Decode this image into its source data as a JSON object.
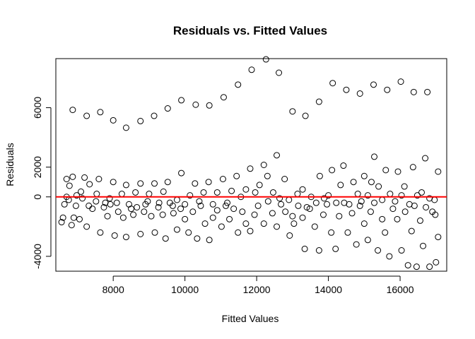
{
  "chart_data": {
    "type": "scatter",
    "title": "Residuals vs. Fitted Values",
    "xlabel": "Fitted Values",
    "ylabel": "Residuals",
    "xlim": [
      6400,
      17300
    ],
    "ylim": [
      -5000,
      9300
    ],
    "x_ticks": [
      8000,
      10000,
      12000,
      14000,
      16000
    ],
    "y_ticks": [
      -4000,
      0,
      2000,
      6000
    ],
    "x_tick_labels": [
      "8000",
      "10000",
      "12000",
      "14000",
      "16000"
    ],
    "y_tick_labels": [
      "-4000",
      "0",
      "2000",
      "6000"
    ],
    "grid": false,
    "legend": "none",
    "reference_line": {
      "y": 0,
      "color": "#ff0000"
    },
    "point_color": "#000000",
    "series": [
      {
        "name": "",
        "points": [
          [
            6870,
            5850
          ],
          [
            7260,
            5450
          ],
          [
            7640,
            5700
          ],
          [
            8000,
            5150
          ],
          [
            8360,
            4650
          ],
          [
            8760,
            5100
          ],
          [
            9140,
            5450
          ],
          [
            9520,
            5950
          ],
          [
            9900,
            6500
          ],
          [
            10300,
            6200
          ],
          [
            10680,
            6150
          ],
          [
            11080,
            6700
          ],
          [
            11480,
            7550
          ],
          [
            11860,
            8550
          ],
          [
            12260,
            9250
          ],
          [
            12620,
            8350
          ],
          [
            13000,
            5750
          ],
          [
            13360,
            5450
          ],
          [
            13740,
            6400
          ],
          [
            14120,
            7650
          ],
          [
            14500,
            7200
          ],
          [
            14880,
            6950
          ],
          [
            15260,
            7550
          ],
          [
            15640,
            7200
          ],
          [
            16020,
            7750
          ],
          [
            16380,
            7050
          ],
          [
            16760,
            7050
          ],
          [
            6700,
            1200
          ],
          [
            6780,
            750
          ],
          [
            6870,
            1350
          ],
          [
            6980,
            100
          ],
          [
            7100,
            350
          ],
          [
            7200,
            1300
          ],
          [
            7340,
            850
          ],
          [
            7540,
            200
          ],
          [
            7600,
            1200
          ],
          [
            7780,
            -400
          ],
          [
            7900,
            -100
          ],
          [
            8000,
            1000
          ],
          [
            8100,
            -400
          ],
          [
            8240,
            200
          ],
          [
            8360,
            800
          ],
          [
            8500,
            -800
          ],
          [
            8620,
            300
          ],
          [
            8760,
            900
          ],
          [
            8900,
            -500
          ],
          [
            9000,
            200
          ],
          [
            9150,
            900
          ],
          [
            9280,
            -400
          ],
          [
            9400,
            350
          ],
          [
            9520,
            1000
          ],
          [
            9660,
            -600
          ],
          [
            9780,
            -200
          ],
          [
            9900,
            1600
          ],
          [
            10000,
            -500
          ],
          [
            10140,
            100
          ],
          [
            10280,
            900
          ],
          [
            10400,
            -300
          ],
          [
            10520,
            300
          ],
          [
            10660,
            1000
          ],
          [
            10780,
            -500
          ],
          [
            10900,
            300
          ],
          [
            11060,
            1200
          ],
          [
            11180,
            -400
          ],
          [
            11300,
            400
          ],
          [
            11440,
            1400
          ],
          [
            11560,
            0
          ],
          [
            11700,
            500
          ],
          [
            11820,
            1900
          ],
          [
            11960,
            300
          ],
          [
            12080,
            800
          ],
          [
            12200,
            2150
          ],
          [
            12300,
            1400
          ],
          [
            12460,
            300
          ],
          [
            12560,
            2800
          ],
          [
            12640,
            -100
          ],
          [
            12780,
            1200
          ],
          [
            12900,
            -200
          ],
          [
            13000,
            -1300
          ],
          [
            13140,
            200
          ],
          [
            13280,
            500
          ],
          [
            13400,
            -700
          ],
          [
            13520,
            0
          ],
          [
            13660,
            -400
          ],
          [
            13760,
            1400
          ],
          [
            13880,
            -100
          ],
          [
            14000,
            100
          ],
          [
            14100,
            1800
          ],
          [
            14220,
            -400
          ],
          [
            14340,
            800
          ],
          [
            14420,
            2100
          ],
          [
            14580,
            -500
          ],
          [
            14700,
            1000
          ],
          [
            14820,
            200
          ],
          [
            14920,
            -300
          ],
          [
            15000,
            1400
          ],
          [
            15100,
            100
          ],
          [
            15200,
            1000
          ],
          [
            15280,
            2700
          ],
          [
            15400,
            700
          ],
          [
            15500,
            -200
          ],
          [
            15600,
            1800
          ],
          [
            15720,
            200
          ],
          [
            15860,
            -300
          ],
          [
            15940,
            1700
          ],
          [
            16040,
            100
          ],
          [
            16120,
            700
          ],
          [
            16260,
            -500
          ],
          [
            16360,
            2000
          ],
          [
            16480,
            100
          ],
          [
            16600,
            300
          ],
          [
            16700,
            2600
          ],
          [
            16820,
            -100
          ],
          [
            16960,
            -200
          ],
          [
            17060,
            1700
          ],
          [
            6560,
            -1700
          ],
          [
            6600,
            -1400
          ],
          [
            6640,
            -500
          ],
          [
            6700,
            0
          ],
          [
            6760,
            -200
          ],
          [
            6840,
            -1900
          ],
          [
            6900,
            -1400
          ],
          [
            6960,
            -600
          ],
          [
            7060,
            -1500
          ],
          [
            7140,
            -100
          ],
          [
            7260,
            -2000
          ],
          [
            7320,
            -600
          ],
          [
            7420,
            -800
          ],
          [
            7520,
            -300
          ],
          [
            7640,
            -2400
          ],
          [
            7740,
            -700
          ],
          [
            7840,
            -1300
          ],
          [
            7920,
            -500
          ],
          [
            8040,
            -2600
          ],
          [
            8140,
            -1000
          ],
          [
            8280,
            -1400
          ],
          [
            8360,
            -2700
          ],
          [
            8440,
            -500
          ],
          [
            8560,
            -1200
          ],
          [
            8660,
            -700
          ],
          [
            8760,
            -2500
          ],
          [
            8860,
            -1000
          ],
          [
            8960,
            -300
          ],
          [
            9060,
            -1300
          ],
          [
            9160,
            -2400
          ],
          [
            9260,
            -700
          ],
          [
            9380,
            -1200
          ],
          [
            9460,
            -2800
          ],
          [
            9580,
            -400
          ],
          [
            9680,
            -1100
          ],
          [
            9780,
            -2200
          ],
          [
            9880,
            -800
          ],
          [
            10000,
            -1500
          ],
          [
            10100,
            -2400
          ],
          [
            10220,
            -1000
          ],
          [
            10340,
            -2800
          ],
          [
            10440,
            -600
          ],
          [
            10560,
            -1800
          ],
          [
            10680,
            -2900
          ],
          [
            10780,
            -1400
          ],
          [
            10900,
            -900
          ],
          [
            11020,
            -2000
          ],
          [
            11140,
            -600
          ],
          [
            11240,
            -1500
          ],
          [
            11360,
            -800
          ],
          [
            11480,
            -2400
          ],
          [
            11600,
            -1000
          ],
          [
            11700,
            -1800
          ],
          [
            11820,
            -2300
          ],
          [
            11940,
            -1200
          ],
          [
            12040,
            -600
          ],
          [
            12200,
            -1800
          ],
          [
            12320,
            -300
          ],
          [
            12440,
            -1100
          ],
          [
            12560,
            -2000
          ],
          [
            12680,
            -500
          ],
          [
            12800,
            -1000
          ],
          [
            12920,
            -2600
          ],
          [
            13040,
            -1800
          ],
          [
            13160,
            -600
          ],
          [
            13280,
            -1400
          ],
          [
            13340,
            -3500
          ],
          [
            13480,
            -800
          ],
          [
            13620,
            -2000
          ],
          [
            13740,
            -3600
          ],
          [
            13860,
            -1200
          ],
          [
            13960,
            -500
          ],
          [
            14080,
            -2400
          ],
          [
            14200,
            -3500
          ],
          [
            14300,
            -1300
          ],
          [
            14440,
            -400
          ],
          [
            14540,
            -2400
          ],
          [
            14660,
            -1100
          ],
          [
            14780,
            -3200
          ],
          [
            14880,
            -600
          ],
          [
            15000,
            -1800
          ],
          [
            15100,
            -2900
          ],
          [
            15180,
            -1000
          ],
          [
            15280,
            -400
          ],
          [
            15380,
            -3600
          ],
          [
            15500,
            -1500
          ],
          [
            15580,
            -2400
          ],
          [
            15700,
            -4000
          ],
          [
            15800,
            -800
          ],
          [
            15920,
            -1500
          ],
          [
            16040,
            -3600
          ],
          [
            16140,
            -1000
          ],
          [
            16220,
            -4600
          ],
          [
            16320,
            -2300
          ],
          [
            16400,
            -600
          ],
          [
            16460,
            -4700
          ],
          [
            16560,
            -1600
          ],
          [
            16640,
            -3300
          ],
          [
            16720,
            -700
          ],
          [
            16820,
            -4700
          ],
          [
            16900,
            -1000
          ],
          [
            16980,
            -1200
          ],
          [
            17060,
            -2700
          ],
          [
            17000,
            -4400
          ]
        ]
      }
    ]
  }
}
